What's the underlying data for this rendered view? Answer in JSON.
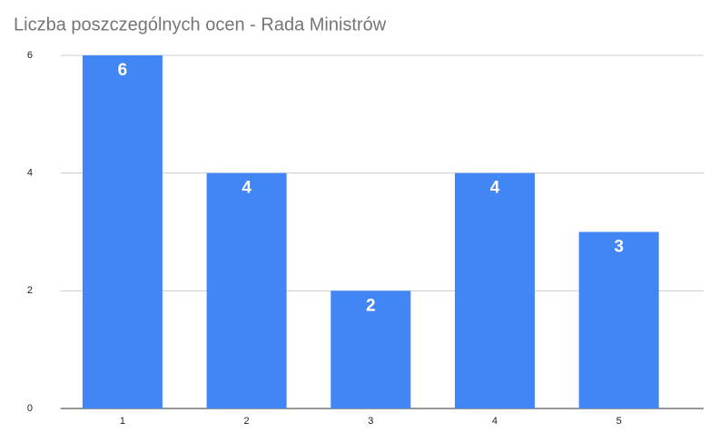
{
  "chart_data": {
    "type": "bar",
    "title": "Liczba poszczególnych ocen - Rada Ministrów",
    "categories": [
      "1",
      "2",
      "3",
      "4",
      "5"
    ],
    "values": [
      6,
      4,
      2,
      4,
      3
    ],
    "color": "#4285f4",
    "ylim": [
      0,
      6
    ],
    "yticks": [
      0,
      2,
      4,
      6
    ],
    "grid": true
  }
}
